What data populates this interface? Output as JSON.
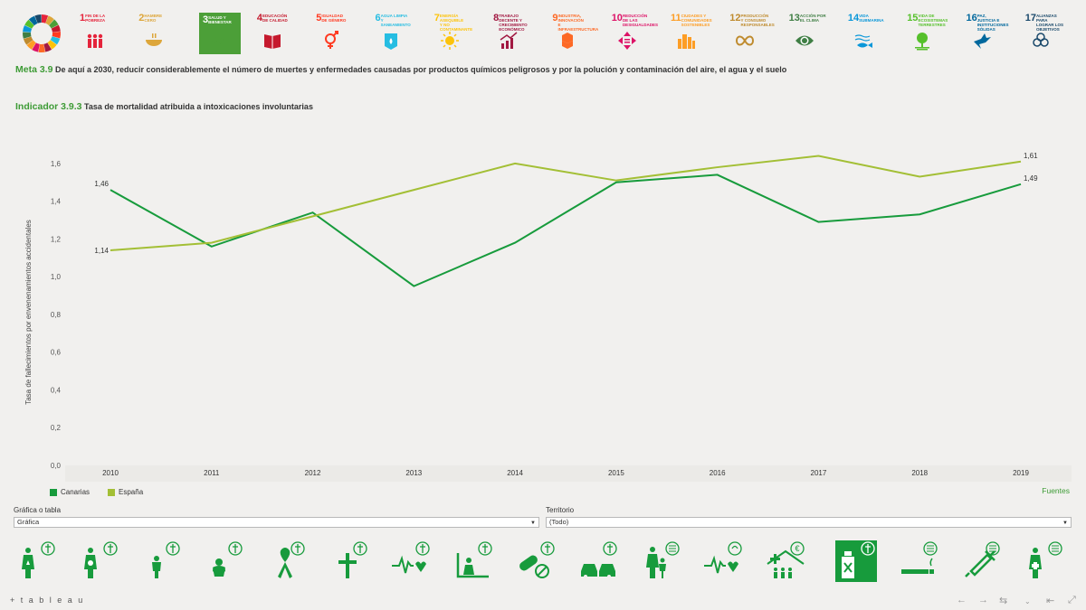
{
  "sdg_goals": [
    {
      "num": "1",
      "label": "Fin de la pobreza",
      "color": "#e5243b",
      "icon": "family-icon"
    },
    {
      "num": "2",
      "label": "Hambre cero",
      "color": "#dda63a",
      "icon": "bowl-icon"
    },
    {
      "num": "3",
      "label": "Salud y bienestar",
      "color": "#4c9f38",
      "icon": "heartbeat-icon"
    },
    {
      "num": "4",
      "label": "Educación de calidad",
      "color": "#c5192d",
      "icon": "book-icon"
    },
    {
      "num": "5",
      "label": "Igualdad de género",
      "color": "#ff3a21",
      "icon": "gender-icon"
    },
    {
      "num": "6",
      "label": "Agua limpia y saneamiento",
      "color": "#26bde2",
      "icon": "water-icon"
    },
    {
      "num": "7",
      "label": "Energía asequible y no contaminante",
      "color": "#fcc30b",
      "icon": "sun-icon"
    },
    {
      "num": "8",
      "label": "Trabajo decente y crecimiento económico",
      "color": "#a21942",
      "icon": "growth-chart-icon"
    },
    {
      "num": "9",
      "label": "Industria, innovación e infraestructura",
      "color": "#fd6925",
      "icon": "cubes-icon"
    },
    {
      "num": "10",
      "label": "Reducción de las desigualdades",
      "color": "#dd1367",
      "icon": "equality-icon"
    },
    {
      "num": "11",
      "label": "Ciudades y comunidades sostenibles",
      "color": "#fd9d24",
      "icon": "city-icon"
    },
    {
      "num": "12",
      "label": "Producción y consumo responsables",
      "color": "#bf8b2e",
      "icon": "infinity-icon"
    },
    {
      "num": "13",
      "label": "Acción por el clima",
      "color": "#3f7e44",
      "icon": "eye-globe-icon"
    },
    {
      "num": "14",
      "label": "Vida submarina",
      "color": "#0a97d9",
      "icon": "fish-icon"
    },
    {
      "num": "15",
      "label": "Vida de ecosistemas terrestres",
      "color": "#56c02b",
      "icon": "tree-icon"
    },
    {
      "num": "16",
      "label": "Paz, justicia e instituciones sólidas",
      "color": "#00689d",
      "icon": "dove-icon"
    },
    {
      "num": "17",
      "label": "Alianzas para lograr los objetivos",
      "color": "#19486a",
      "icon": "rings-icon"
    }
  ],
  "meta": {
    "label": "Meta 3.9",
    "text": "De aquí a 2030, reducir considerablemente el número de muertes y enfermedades causadas por productos químicos peligrosos y por la polución y contaminación del aire, el agua y el suelo"
  },
  "indicador": {
    "label": "Indicador 3.9.3",
    "text": "Tasa de mortalidad atribuida a intoxicaciones involuntarias"
  },
  "chart_data": {
    "type": "line",
    "title": "",
    "xlabel": "",
    "ylabel": "Tasa de fallecimientos por envenenamientos accidentales",
    "categories": [
      "2010",
      "2011",
      "2012",
      "2013",
      "2014",
      "2015",
      "2016",
      "2017",
      "2018",
      "2019"
    ],
    "ylim": [
      0,
      1.7
    ],
    "yticks": [
      "0,0",
      "0,2",
      "0,4",
      "0,6",
      "0,8",
      "1,0",
      "1,2",
      "1,4",
      "1,6"
    ],
    "ytick_values": [
      0,
      0.2,
      0.4,
      0.6,
      0.8,
      1.0,
      1.2,
      1.4,
      1.6
    ],
    "series": [
      {
        "name": "Canarias",
        "color": "#179b3c",
        "values": [
          1.46,
          1.16,
          1.34,
          0.95,
          1.18,
          1.5,
          1.54,
          1.29,
          1.33,
          1.49
        ],
        "labels": {
          "0": "1,46",
          "9": "1,49"
        }
      },
      {
        "name": "España",
        "color": "#a3bf35",
        "values": [
          1.14,
          1.18,
          1.32,
          1.46,
          1.6,
          1.51,
          1.58,
          1.64,
          1.53,
          1.61
        ],
        "labels": {
          "0": "1,14",
          "9": "1,61"
        }
      }
    ]
  },
  "fuentes": "Fuentes",
  "filters": {
    "grafica": {
      "label": "Gráfica o tabla",
      "value": "Gráfica"
    },
    "territorio": {
      "label": "Territorio",
      "value": "(Todo)"
    }
  },
  "indicators": [
    {
      "icon": "maternal-mortality-icon"
    },
    {
      "icon": "birth-attendance-icon"
    },
    {
      "icon": "child-mortality-icon"
    },
    {
      "icon": "neonatal-mortality-icon"
    },
    {
      "icon": "aids-ribbon-icon"
    },
    {
      "icon": "cross-mortality-icon"
    },
    {
      "icon": "heartbeat-mortality-icon"
    },
    {
      "icon": "suicide-icon"
    },
    {
      "icon": "pills-icon"
    },
    {
      "icon": "car-crash-icon"
    },
    {
      "icon": "family-planning-icon"
    },
    {
      "icon": "health-coverage-icon"
    },
    {
      "icon": "health-expenditure-icon"
    },
    {
      "icon": "poison-bottle-icon"
    },
    {
      "icon": "tobacco-icon"
    },
    {
      "icon": "vaccine-icon"
    },
    {
      "icon": "health-worker-icon"
    }
  ],
  "footer": {
    "brand": "+ t a b l e a u"
  }
}
